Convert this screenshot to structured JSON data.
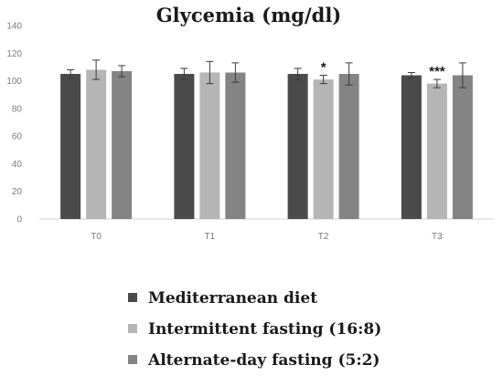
{
  "chart_data": {
    "type": "bar",
    "title": "Glycemia (mg/dl)",
    "categories": [
      "T0",
      "T1",
      "T2",
      "T3"
    ],
    "ylim": [
      0,
      140
    ],
    "yticks": [
      0,
      20,
      40,
      60,
      80,
      100,
      120,
      140
    ],
    "grid": false,
    "legend_position": "bottom",
    "series": [
      {
        "name": "Mediterranean diet",
        "color": "#4a4a4a",
        "values": [
          105,
          105,
          105,
          104
        ],
        "errors": [
          3,
          4,
          4,
          2
        ]
      },
      {
        "name": "Intermittent fasting (16:8)",
        "color": "#b5b5b5",
        "values": [
          108,
          106,
          101,
          98
        ],
        "errors": [
          7,
          8,
          3,
          3
        ]
      },
      {
        "name": "Alternate-day fasting (5:2)",
        "color": "#848484",
        "values": [
          107,
          106,
          105,
          104
        ],
        "errors": [
          4,
          7,
          8,
          9
        ]
      }
    ],
    "annotations": [
      {
        "category": "T2",
        "series": 1,
        "text": "*"
      },
      {
        "category": "T3",
        "series": 1,
        "text": "***"
      }
    ]
  }
}
